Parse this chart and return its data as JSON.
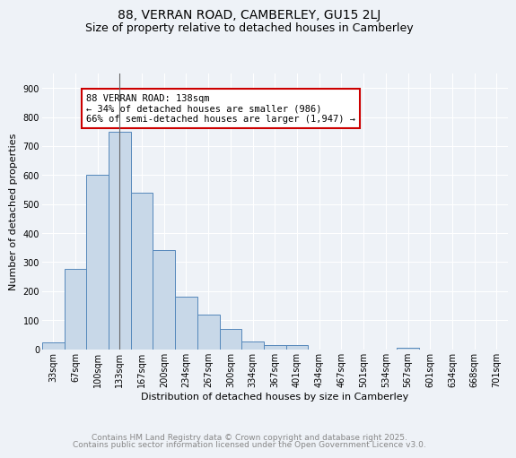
{
  "title1": "88, VERRAN ROAD, CAMBERLEY, GU15 2LJ",
  "title2": "Size of property relative to detached houses in Camberley",
  "xlabel": "Distribution of detached houses by size in Camberley",
  "ylabel": "Number of detached properties",
  "categories": [
    "33sqm",
    "67sqm",
    "100sqm",
    "133sqm",
    "167sqm",
    "200sqm",
    "234sqm",
    "267sqm",
    "300sqm",
    "334sqm",
    "367sqm",
    "401sqm",
    "434sqm",
    "467sqm",
    "501sqm",
    "534sqm",
    "567sqm",
    "601sqm",
    "634sqm",
    "668sqm",
    "701sqm"
  ],
  "values": [
    22,
    275,
    600,
    748,
    540,
    342,
    180,
    118,
    68,
    25,
    15,
    14,
    0,
    0,
    0,
    0,
    5,
    0,
    0,
    0,
    0
  ],
  "bar_color": "#c8d8e8",
  "bar_edge_color": "#5588bb",
  "background_color": "#eef2f7",
  "annotation_text": "88 VERRAN ROAD: 138sqm\n← 34% of detached houses are smaller (986)\n66% of semi-detached houses are larger (1,947) →",
  "annotation_box_color": "#ffffff",
  "annotation_box_edge": "#cc0000",
  "vline_x_index": 3,
  "ylim": [
    0,
    950
  ],
  "yticks": [
    0,
    100,
    200,
    300,
    400,
    500,
    600,
    700,
    800,
    900
  ],
  "footer_line1": "Contains HM Land Registry data © Crown copyright and database right 2025.",
  "footer_line2": "Contains public sector information licensed under the Open Government Licence v3.0.",
  "grid_color": "#ffffff",
  "title_fontsize": 10,
  "subtitle_fontsize": 9,
  "axis_label_fontsize": 8,
  "tick_fontsize": 7,
  "annotation_fontsize": 7.5,
  "footer_fontsize": 6.5
}
